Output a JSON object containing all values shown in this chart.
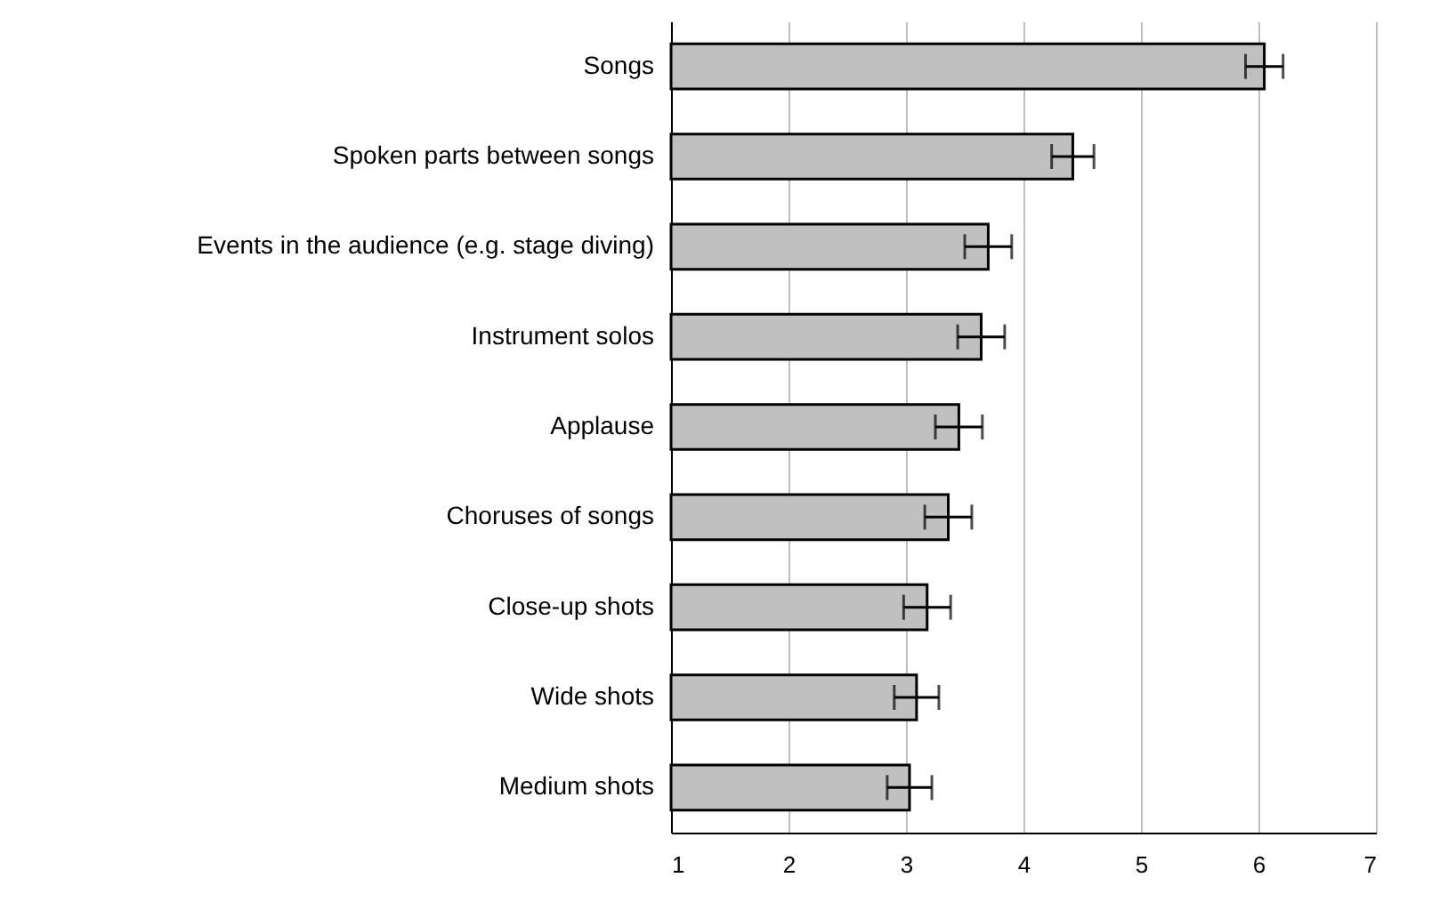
{
  "chart_data": {
    "type": "bar",
    "orientation": "horizontal",
    "categories": [
      "Songs",
      "Spoken parts between songs",
      "Events in the audience (e.g. stage diving)",
      "Instrument solos",
      "Applause",
      "Choruses of songs",
      "Close-up shots",
      "Wide shots",
      "Medium shots"
    ],
    "values": [
      6.05,
      4.42,
      3.7,
      3.64,
      3.45,
      3.36,
      3.18,
      3.09,
      3.03
    ],
    "errors": [
      0.16,
      0.18,
      0.2,
      0.2,
      0.2,
      0.2,
      0.2,
      0.19,
      0.19
    ],
    "color": "#c0c0c0",
    "xlim": [
      1,
      7
    ],
    "xticks": [
      1,
      2,
      3,
      4,
      5,
      6,
      7
    ],
    "grid": "x"
  }
}
